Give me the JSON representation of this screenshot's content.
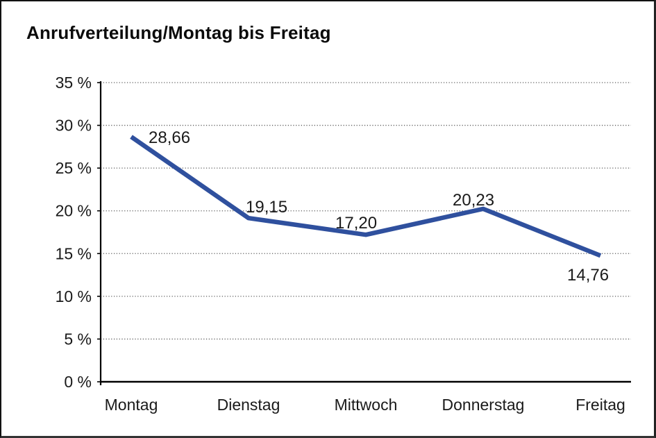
{
  "chart": {
    "title": "Anrufverteilung/Montag bis Freitag"
  },
  "chart_data": {
    "type": "line",
    "title": "Anrufverteilung/Montag bis Freitag",
    "categories": [
      "Montag",
      "Dienstag",
      "Mittwoch",
      "Donnerstag",
      "Freitag"
    ],
    "series": [
      {
        "name": "Anrufverteilung",
        "values": [
          28.66,
          19.15,
          17.2,
          20.23,
          14.76
        ]
      }
    ],
    "point_labels": [
      "28,66",
      "19,15",
      "17,20",
      "20,23",
      "14,76"
    ],
    "xlabel": "",
    "ylabel": "",
    "ylim": [
      0,
      35
    ],
    "y_ticks": [
      0,
      5,
      10,
      15,
      20,
      25,
      30,
      35
    ],
    "y_tick_labels": [
      "0 %",
      "5 %",
      "10 %",
      "15 %",
      "20 %",
      "25 %",
      "30 %",
      "35 %"
    ],
    "grid": "horizontal-dotted",
    "legend": "none",
    "colors": {
      "line": "#2F509E",
      "grid": "#5a5a5a",
      "axis": "#000000",
      "text": "#1a1a1a"
    }
  }
}
